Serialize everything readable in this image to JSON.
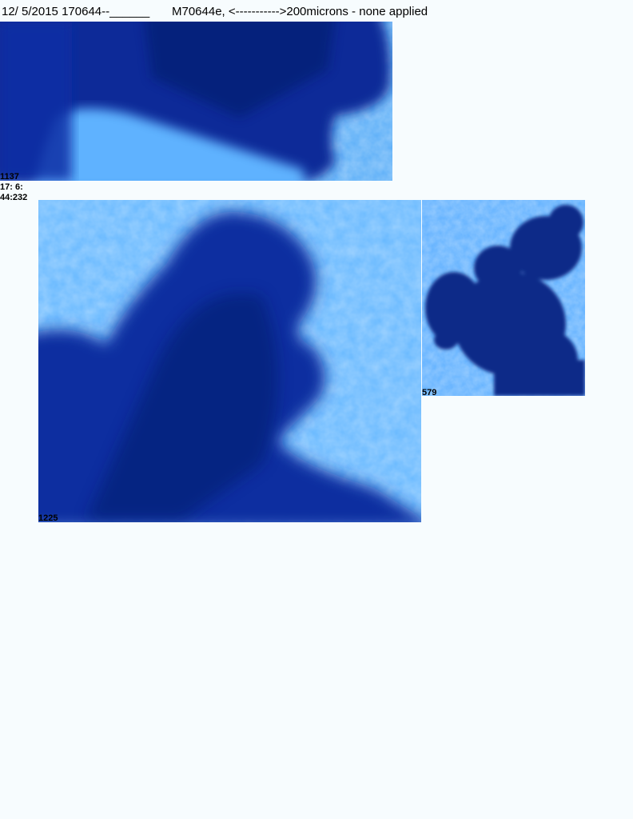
{
  "header": {
    "date": "12/ 5/2015",
    "id": "170644--",
    "blank": "______",
    "title_overlap": "M70644e,",
    "scale": "<----------->200microns - none applied"
  },
  "panels": [
    {
      "label": "1137"
    },
    {
      "label": "1225"
    },
    {
      "label": "579"
    }
  ],
  "timestamp": {
    "line1": "17: 6:",
    "line2": "44:232"
  },
  "colors": {
    "background": "#f7fcfe",
    "light_blue": "#5fb2ff",
    "deep_blue": "#0b2f9e",
    "navy": "#061a6b"
  }
}
